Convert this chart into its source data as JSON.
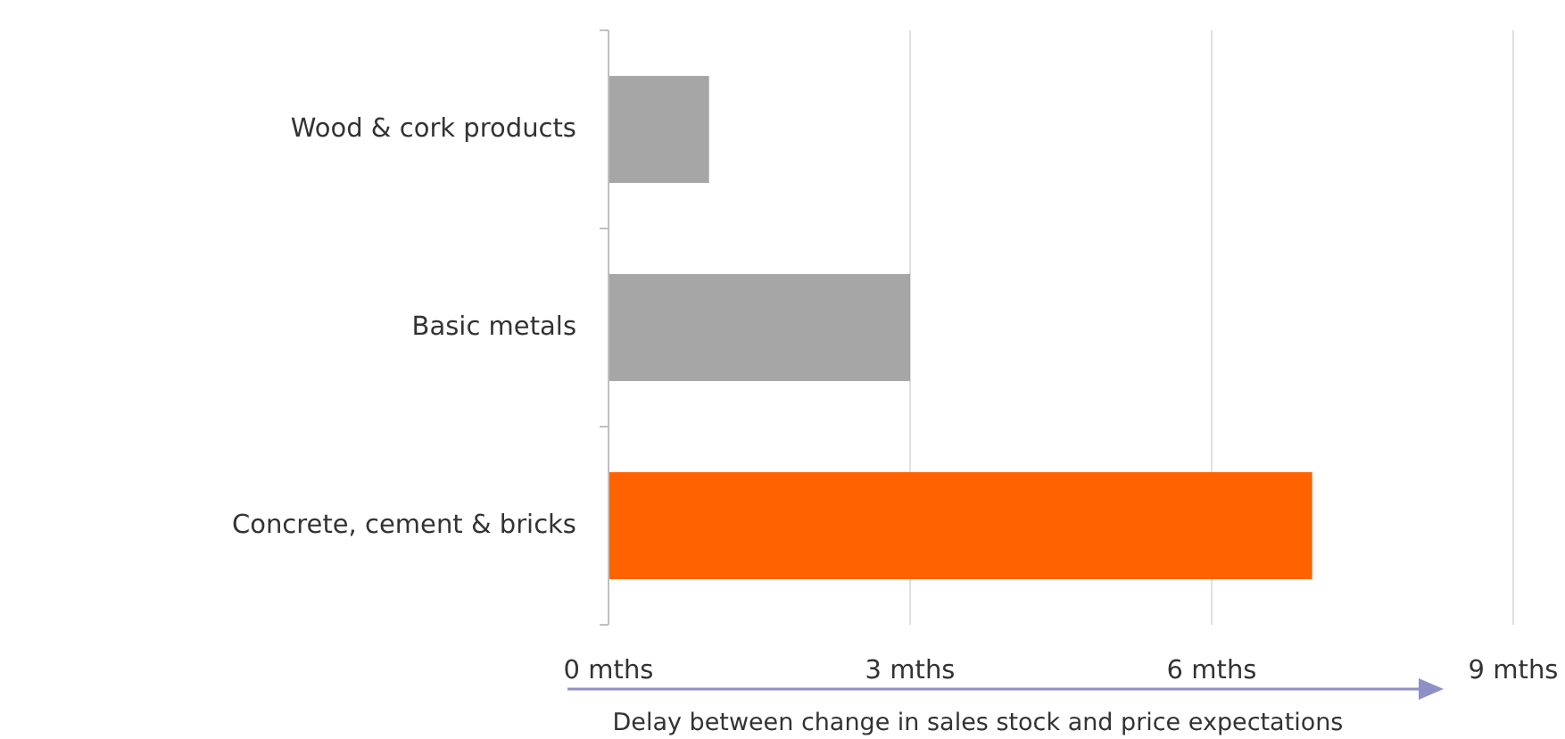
{
  "chart_data": {
    "type": "bar",
    "orientation": "horizontal",
    "categories": [
      "Wood & cork products",
      "Basic metals",
      "Concrete, cement & bricks"
    ],
    "values": [
      1,
      3,
      7
    ],
    "colors": [
      "#a6a6a6",
      "#a6a6a6",
      "#ff6200"
    ],
    "xlim": [
      0,
      9
    ],
    "xticks": [
      {
        "value": 0,
        "label": "0 mths"
      },
      {
        "value": 3,
        "label": "3 mths"
      },
      {
        "value": 6,
        "label": "6 mths"
      },
      {
        "value": 9,
        "label": "9 mths"
      }
    ],
    "xlabel": "Delay between change in sales stock and price expectations",
    "grid": "x"
  }
}
